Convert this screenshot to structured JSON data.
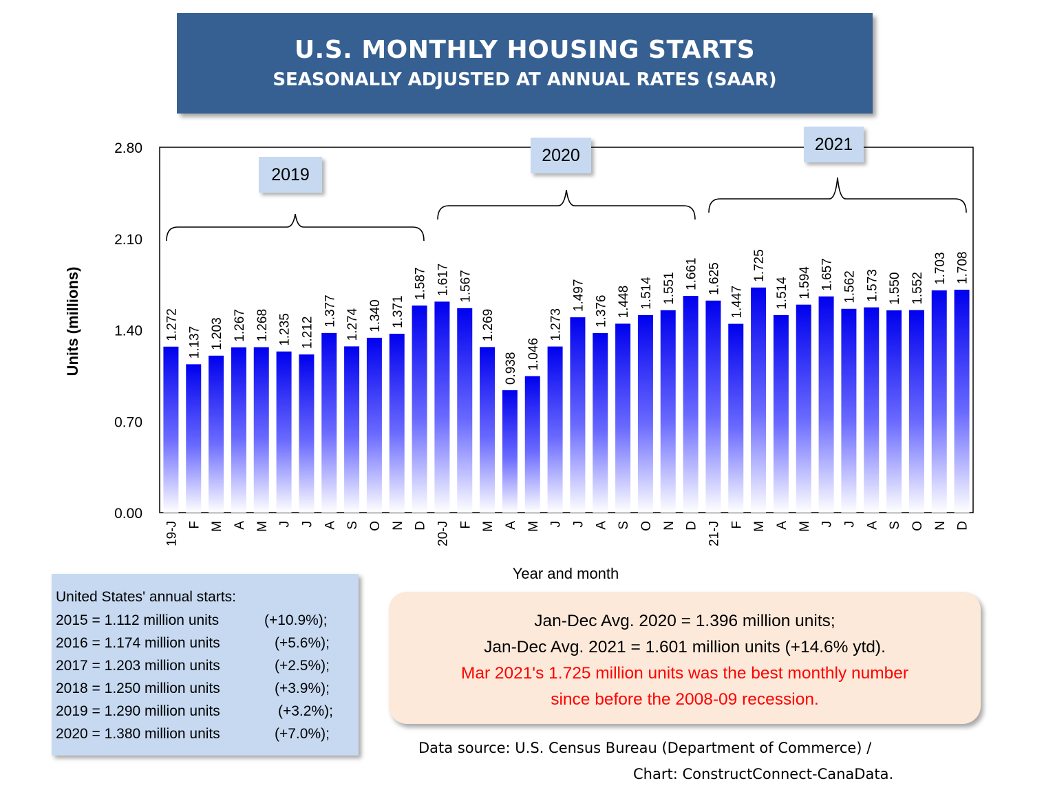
{
  "title": {
    "main": "U.S. MONTHLY HOUSING STARTS",
    "sub": "SEASONALLY ADJUSTED AT ANNUAL RATES (SAAR)"
  },
  "chart_data": {
    "type": "bar",
    "categories": [
      "19-J",
      "F",
      "M",
      "A",
      "M",
      "J",
      "J",
      "A",
      "S",
      "O",
      "N",
      "D",
      "20-J",
      "F",
      "M",
      "A",
      "M",
      "J",
      "J",
      "A",
      "S",
      "O",
      "N",
      "D",
      "21-J",
      "F",
      "M",
      "A",
      "M",
      "J",
      "J",
      "A",
      "S",
      "O",
      "N",
      "D"
    ],
    "values": [
      1.272,
      1.137,
      1.203,
      1.267,
      1.268,
      1.235,
      1.212,
      1.377,
      1.274,
      1.34,
      1.371,
      1.587,
      1.617,
      1.567,
      1.269,
      0.938,
      1.046,
      1.273,
      1.497,
      1.376,
      1.448,
      1.514,
      1.551,
      1.661,
      1.625,
      1.447,
      1.725,
      1.514,
      1.594,
      1.657,
      1.562,
      1.573,
      1.55,
      1.552,
      1.703,
      1.708
    ],
    "value_labels": [
      "1.272",
      "1.137",
      "1.203",
      "1.267",
      "1.268",
      "1.235",
      "1.212",
      "1.377",
      "1.274",
      "1.340",
      "1.371",
      "1.587",
      "1.617",
      "1.567",
      "1.269",
      "0.938",
      "1.046",
      "1.273",
      "1.497",
      "1.376",
      "1.448",
      "1.514",
      "1.551",
      "1.661",
      "1.625",
      "1.447",
      "1.725",
      "1.514",
      "1.594",
      "1.657",
      "1.562",
      "1.573",
      "1.550",
      "1.552",
      "1.703",
      "1.708"
    ],
    "ylim": [
      0,
      2.8
    ],
    "yticks": [
      "0.00",
      "0.70",
      "1.40",
      "2.10",
      "2.80"
    ],
    "ylabel": "Units (millions)",
    "xlabel": "Year and month",
    "grid": false,
    "bar_color": "#1a1aff",
    "year_groups": [
      {
        "label": "2019",
        "start": 0,
        "end": 11
      },
      {
        "label": "2020",
        "start": 12,
        "end": 23
      },
      {
        "label": "2021",
        "start": 24,
        "end": 35
      }
    ]
  },
  "annual_box": {
    "title": "United States' annual starts:",
    "rows": [
      {
        "label": "2015 = 1.112 million units",
        "pct": "(+10.9%);"
      },
      {
        "label": "2016 = 1.174 million units",
        "pct": "(+5.6%);"
      },
      {
        "label": "2017 = 1.203 million units",
        "pct": "(+2.5%);"
      },
      {
        "label": "2018 = 1.250 million units",
        "pct": "(+3.9%);"
      },
      {
        "label": "2019 = 1.290 million units",
        "pct": "(+3.2%);"
      },
      {
        "label": "2020 = 1.380 million units",
        "pct": "(+7.0%);"
      }
    ]
  },
  "avg_box": {
    "line1": "Jan-Dec Avg. 2020 = 1.396 million units;",
    "line2": "Jan-Dec Avg. 2021 = 1.601 million units (+14.6% ytd).",
    "line3": "Mar 2021's 1.725 million units was the best monthly number",
    "line4": "since before the 2008-09 recession."
  },
  "source": {
    "line1": "Data source: U.S. Census Bureau (Department of Commerce) /",
    "line2": "Chart: ConstructConnect-CanaData."
  },
  "colors": {
    "title_bg": "#376092",
    "tag_bg": "#c6d9f1",
    "avg_bg": "#fde9d9",
    "highlight": "#ff0000"
  }
}
